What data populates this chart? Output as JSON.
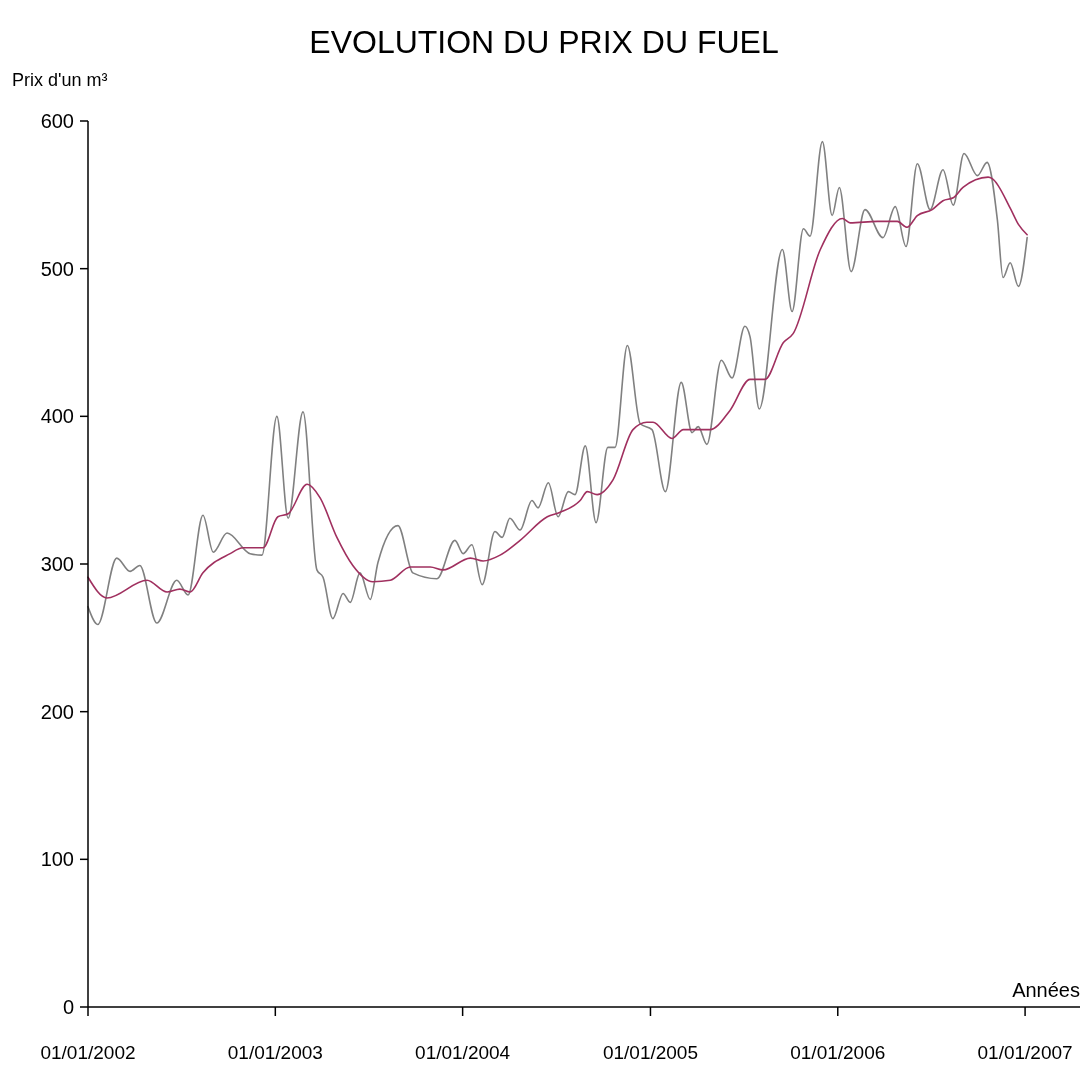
{
  "chart_data": {
    "type": "line",
    "title": "EVOLUTION DU PRIX DU FUEL",
    "ylabel": "Prix d'un m³",
    "xlabel": "Années",
    "xlim": [
      "2002-01-01",
      "2007-04-18"
    ],
    "xticks": [
      {
        "value": "2002-01-01",
        "label": "01/01/2002"
      },
      {
        "value": "2003-01-01",
        "label": "01/01/2003"
      },
      {
        "value": "2004-01-01",
        "label": "01/01/2004"
      },
      {
        "value": "2005-01-01",
        "label": "01/01/2005"
      },
      {
        "value": "2006-01-01",
        "label": "01/01/2006"
      },
      {
        "value": "2007-01-01",
        "label": "01/01/2007"
      }
    ],
    "ylim": [
      0,
      600
    ],
    "yticks": [
      0,
      100,
      200,
      300,
      400,
      500,
      600
    ],
    "grid": false,
    "marker": "none",
    "line_style": "solid",
    "series": [
      {
        "color": "#808080",
        "x": [
          "2002-01-01",
          "2002-01-20",
          "2002-02-26",
          "2002-03-24",
          "2002-04-12",
          "2002-05-15",
          "2002-06-23",
          "2002-07-15",
          "2002-08-13",
          "2002-09-02",
          "2002-09-29",
          "2002-11-13",
          "2002-12-06",
          "2003-01-04",
          "2003-01-26",
          "2003-02-24",
          "2003-03-23",
          "2003-04-04",
          "2003-04-23",
          "2003-05-13",
          "2003-05-27",
          "2003-06-15",
          "2003-07-05",
          "2003-07-20",
          "2003-08-28",
          "2003-09-26",
          "2003-11-12",
          "2003-12-17",
          "2004-01-02",
          "2004-01-19",
          "2004-02-08",
          "2004-03-04",
          "2004-03-18",
          "2004-04-02",
          "2004-04-22",
          "2004-05-15",
          "2004-05-27",
          "2004-06-16",
          "2004-07-05",
          "2004-07-25",
          "2004-08-07",
          "2004-08-27",
          "2004-09-17",
          "2004-10-10",
          "2004-10-24",
          "2004-11-17",
          "2004-12-12",
          "2005-01-04",
          "2005-01-30",
          "2005-03-02",
          "2005-03-23",
          "2005-04-04",
          "2005-04-21",
          "2005-05-19",
          "2005-06-09",
          "2005-07-04",
          "2005-07-14",
          "2005-08-01",
          "2005-09-15",
          "2005-10-04",
          "2005-10-26",
          "2005-11-08",
          "2005-12-02",
          "2005-12-21",
          "2006-01-04",
          "2006-01-27",
          "2006-02-23",
          "2006-03-30",
          "2006-04-23",
          "2006-05-14",
          "2006-06-05",
          "2006-06-30",
          "2006-07-25",
          "2006-08-14",
          "2006-09-04",
          "2006-09-30",
          "2006-10-19",
          "2006-11-08",
          "2006-11-19",
          "2006-12-03",
          "2006-12-19",
          "2007-01-05"
        ],
        "values": [
          271,
          259,
          304,
          295,
          299,
          260,
          289,
          279,
          333,
          308,
          321,
          307,
          306,
          400,
          331,
          403,
          296,
          291,
          263,
          280,
          274,
          294,
          276,
          301,
          326,
          294,
          290,
          316,
          307,
          313,
          286,
          322,
          318,
          331,
          323,
          343,
          338,
          355,
          332,
          349,
          347,
          380,
          328,
          379,
          379,
          448,
          395,
          391,
          349,
          423,
          389,
          393,
          381,
          438,
          426,
          461,
          454,
          405,
          513,
          471,
          527,
          522,
          586,
          536,
          555,
          498,
          540,
          521,
          542,
          515,
          571,
          540,
          567,
          543,
          578,
          563,
          572,
          533,
          494,
          504,
          488,
          521
        ]
      },
      {
        "color": "#a0305f",
        "x": [
          "2002-01-01",
          "2002-02-07",
          "2002-04-26",
          "2002-06-04",
          "2002-06-29",
          "2002-07-19",
          "2002-08-13",
          "2002-10-05",
          "2002-10-30",
          "2002-12-08",
          "2003-01-06",
          "2003-01-26",
          "2003-03-04",
          "2003-03-29",
          "2003-05-01",
          "2003-06-01",
          "2003-07-10",
          "2003-08-13",
          "2003-09-21",
          "2003-10-30",
          "2003-11-24",
          "2004-01-16",
          "2004-02-10",
          "2004-03-14",
          "2004-04-22",
          "2004-06-14",
          "2004-07-09",
          "2004-08-17",
          "2004-08-31",
          "2004-09-19",
          "2004-10-20",
          "2004-11-28",
          "2004-12-25",
          "2005-01-06",
          "2005-02-12",
          "2005-03-06",
          "2005-04-27",
          "2005-06-05",
          "2005-07-14",
          "2005-08-12",
          "2005-09-17",
          "2005-10-06",
          "2005-11-28",
          "2006-01-10",
          "2006-01-25",
          "2006-03-19",
          "2006-04-27",
          "2006-05-16",
          "2006-06-05",
          "2006-07-04",
          "2006-07-25",
          "2006-08-14",
          "2006-09-02",
          "2006-10-21",
          "2006-10-29",
          "2006-12-03",
          "2006-12-19",
          "2007-01-05"
        ],
        "values": [
          291,
          277,
          289,
          281,
          283,
          281,
          294,
          307,
          311,
          311,
          332,
          334,
          354,
          345,
          318,
          299,
          288,
          289,
          298,
          298,
          296,
          304,
          302,
          306,
          316,
          332,
          335,
          343,
          349,
          347,
          357,
          391,
          396,
          396,
          385,
          391,
          391,
          404,
          425,
          425,
          450,
          456,
          513,
          534,
          531,
          532,
          532,
          528,
          536,
          540,
          546,
          548,
          555,
          562,
          561,
          541,
          530,
          523
        ]
      }
    ]
  }
}
